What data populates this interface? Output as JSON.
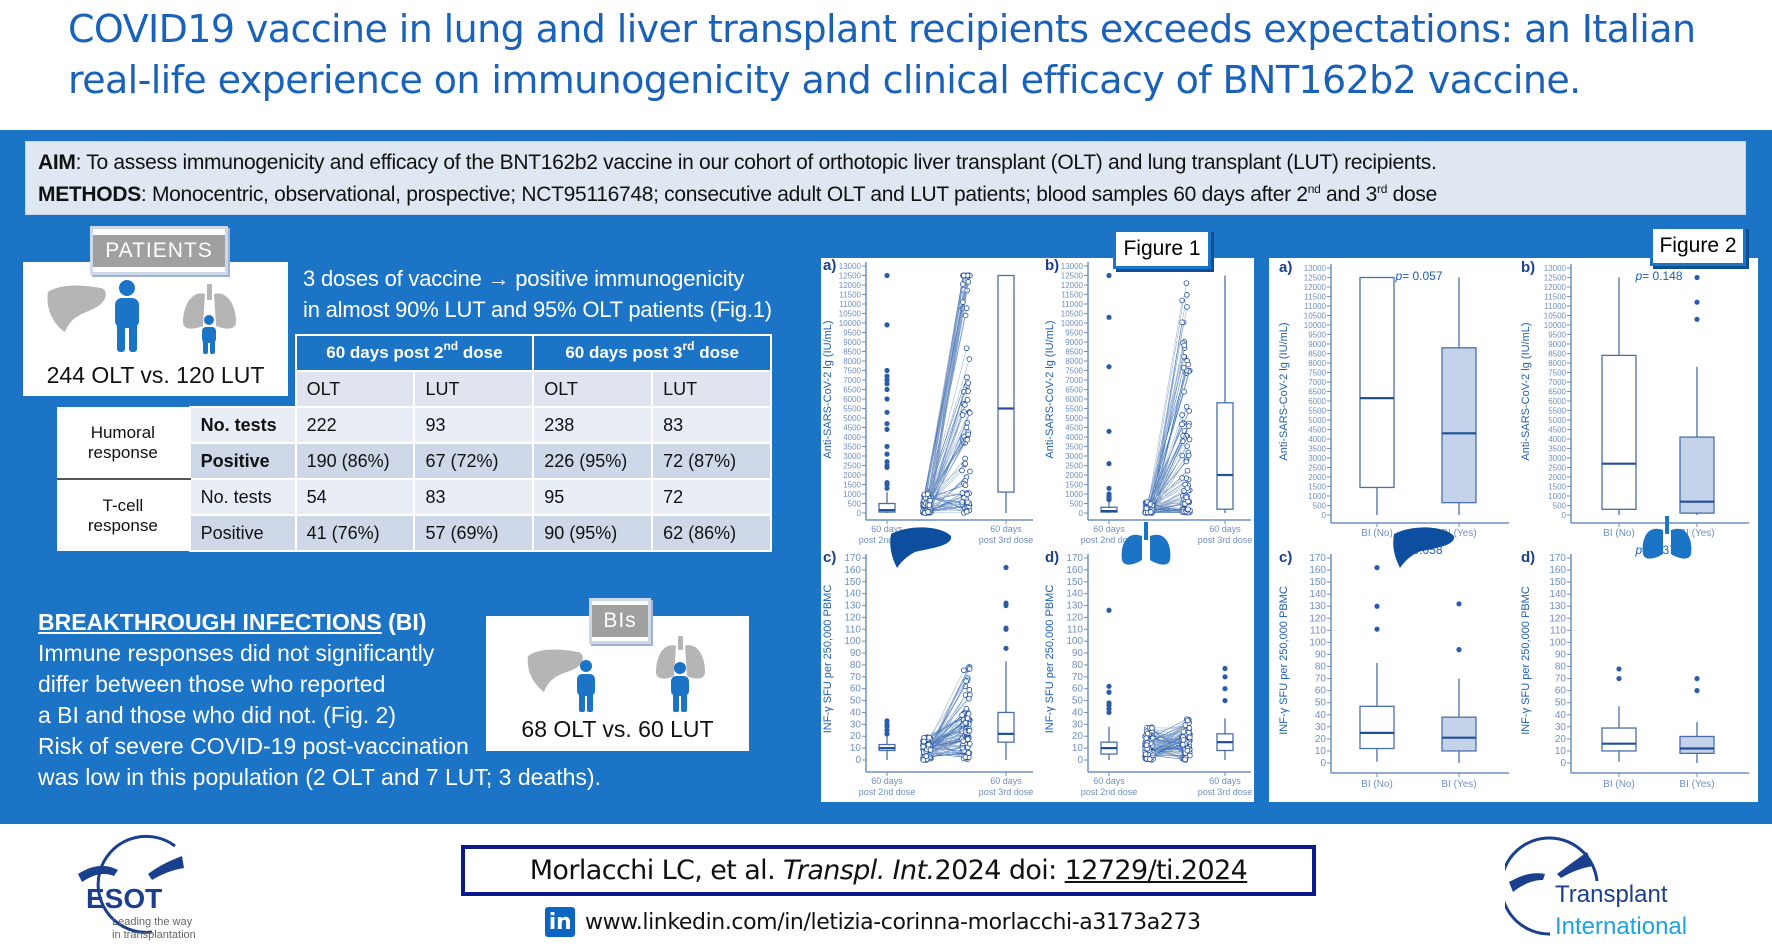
{
  "title": {
    "line1": "COVID19 vaccine in lung and liver transplant recipients exceeds expectations: an Italian",
    "line2": "real-life experience on immunogenicity and clinical efficacy of BNT162b2 vaccine."
  },
  "aim": {
    "label": "AIM",
    "text": ": To assess immunogenicity and efficacy of the BNT162b2 vaccine in our cohort of orthotopic liver transplant (OLT) and lung transplant (LUT) recipients."
  },
  "methods": {
    "label": "METHODS",
    "text": ": Monocentric, observational, prospective; NCT95116748; consecutive adult OLT and LUT patients; blood samples 60 days after 2",
    "sup1": "nd",
    "mid": " and 3",
    "sup2": "rd",
    "end": " dose"
  },
  "patients": {
    "tab": "PATIENTS",
    "count": "244 OLT  vs. 120 LUT"
  },
  "summary": {
    "line1": "3 doses of vaccine → positive immunogenicity",
    "line2": "in almost 90% LUT and 95% OLT patients (Fig.1)"
  },
  "table": {
    "header1": [
      {
        "pre": "60 days post 2",
        "sup": "nd",
        "post": " dose"
      },
      {
        "pre": "60 days post 3",
        "sup": "rd",
        "post": " dose"
      }
    ],
    "header2": [
      "OLT",
      "LUT",
      "OLT",
      "LUT"
    ],
    "groups": [
      {
        "label": "Humoral response",
        "rows": [
          {
            "label": "No. tests",
            "values": [
              "222",
              "93",
              "238",
              "83"
            ]
          },
          {
            "label": "Positive",
            "values": [
              "190 (86%)",
              "67 (72%)",
              "226 (95%)",
              "72 (87%)"
            ]
          }
        ]
      },
      {
        "label": "T-cell response",
        "rows": [
          {
            "label": "No. tests",
            "values": [
              "54",
              "83",
              "95",
              "72"
            ]
          },
          {
            "label": "Positive",
            "values": [
              "41 (76%)",
              "57 (69%)",
              "90 (95%)",
              "62 (86%)"
            ]
          }
        ]
      }
    ]
  },
  "breakthrough": {
    "heading": "BREAKTHROUGH INFECTIONS",
    "heading_suffix": " (BI)",
    "lines": [
      "Immune responses did not significantly",
      "differ between those who reported",
      "a BI and those who did not. (Fig. 2)",
      "Risk of severe COVID-19 post-vaccination",
      "was low in this population (2 OLT and 7 LUT; 3 deaths)."
    ]
  },
  "bis": {
    "tab": "BIs",
    "count": "68 OLT  vs. 60 LUT"
  },
  "figure1": {
    "label": "Figure 1"
  },
  "figure2": {
    "label": "Figure 2"
  },
  "citation": {
    "authors": "Morlacchi LC, et al. ",
    "journal": "Transpl. Int.",
    "year": " 2024 doi: ",
    "doi": "12729/ti.2024"
  },
  "linkedin": {
    "icon": "in",
    "url": "www.linkedin.com/in/letizia-corinna-morlacchi-a3173a273"
  },
  "logos": {
    "esot": {
      "name": "ESOT",
      "tagline1": "Leading the way",
      "tagline2": "in transplantation"
    },
    "ti": {
      "line1": "Transplant",
      "line2": "International"
    }
  },
  "colors": {
    "panel_blue": "#1b74c6",
    "title_blue": "#1a62b8",
    "chart_navy": "#1f4e9c",
    "chart_tick": "#6f8fc0",
    "bi_yes_fill": "#c5d3ea",
    "organ_gray": "#b5b5b5"
  },
  "chart_data": [
    {
      "figure": "Figure 1",
      "panel": "a)",
      "type": "box+paired",
      "organ": "liver",
      "ylabel": "Anti-SARS-CoV-2 lg (IU/mL)",
      "ylim": [
        0,
        13000
      ],
      "ytick_step": 500,
      "categories": [
        [
          "60 days",
          "post 2nd dose"
        ],
        [
          "60 days",
          "post 3rd dose"
        ]
      ],
      "boxes": [
        {
          "whisker_low": 0,
          "q1": 50,
          "median": 150,
          "q3": 500,
          "whisker_high": 1100,
          "outliers": [
            1300,
            1500,
            1600,
            2400,
            2500,
            2700,
            3100,
            3500,
            4400,
            4700,
            5300,
            6000,
            6500,
            6800,
            7000,
            7200,
            7500,
            9900,
            12500
          ]
        },
        {
          "whisker_low": 0,
          "q1": 1100,
          "median": 5500,
          "q3": 12500,
          "whisker_high": 12500,
          "outliers": []
        }
      ]
    },
    {
      "figure": "Figure 1",
      "panel": "b)",
      "type": "box+paired",
      "organ": "lungs",
      "ylabel": "Anti-SARS-CoV-2 lg (IU/mL)",
      "ylim": [
        0,
        13000
      ],
      "ytick_step": 500,
      "categories": [
        [
          "60 days",
          "post 2nd dose"
        ],
        [
          "60 days",
          "post 3rd dose"
        ]
      ],
      "boxes": [
        {
          "whisker_low": 0,
          "q1": 50,
          "median": 100,
          "q3": 300,
          "whisker_high": 600,
          "outliers": [
            700,
            800,
            900,
            1000,
            1300,
            2600,
            4300,
            7700,
            10300,
            12500
          ]
        },
        {
          "whisker_low": 0,
          "q1": 200,
          "median": 2000,
          "q3": 5800,
          "whisker_high": 12500,
          "outliers": []
        }
      ]
    },
    {
      "figure": "Figure 1",
      "panel": "c)",
      "type": "box+paired",
      "organ": "liver",
      "ylabel": "INF-γ SFU per 250,000 PBMC",
      "ylim": [
        0,
        170
      ],
      "ytick_step": 10,
      "categories": [
        [
          "60 days",
          "post 2nd dose"
        ],
        [
          "60 days",
          "post 3rd dose"
        ]
      ],
      "boxes": [
        {
          "whisker_low": 0,
          "q1": 8,
          "median": 10,
          "q3": 13,
          "whisker_high": 20,
          "outliers": [
            22,
            25,
            28,
            30,
            33
          ]
        },
        {
          "whisker_low": 0,
          "q1": 15,
          "median": 22,
          "q3": 40,
          "whisker_high": 83,
          "outliers": [
            94,
            110,
            111,
            130,
            132,
            162
          ]
        }
      ]
    },
    {
      "figure": "Figure 1",
      "panel": "d)",
      "type": "box+paired",
      "organ": "lungs",
      "ylabel": "INF-γ SFU per 250,000 PBMC",
      "ylim": [
        0,
        170
      ],
      "ytick_step": 10,
      "categories": [
        [
          "60 days",
          "post 2nd dose"
        ],
        [
          "60 days",
          "post 3rd dose"
        ]
      ],
      "boxes": [
        {
          "whisker_low": 0,
          "q1": 5,
          "median": 10,
          "q3": 15,
          "whisker_high": 28,
          "outliers": [
            40,
            43,
            46,
            48,
            57,
            62,
            126
          ]
        },
        {
          "whisker_low": 0,
          "q1": 8,
          "median": 15,
          "q3": 22,
          "whisker_high": 35,
          "outliers": [
            50,
            60,
            70,
            77
          ]
        }
      ]
    },
    {
      "figure": "Figure 2",
      "panel": "a)",
      "type": "box",
      "organ": "liver",
      "p_label": "p =",
      "p_value": "0.057",
      "ylabel": "Anti-SARS-CoV-2 lg (IU/mL)",
      "ylim": [
        0,
        13000
      ],
      "ytick_step": 500,
      "categories": [
        [
          "BI (No)"
        ],
        [
          "BI (Yes)"
        ]
      ],
      "boxes": [
        {
          "whisker_low": 0,
          "q1": 1450,
          "median": 6150,
          "q3": 12500,
          "whisker_high": 12500,
          "outliers": []
        },
        {
          "whisker_low": 0,
          "q1": 650,
          "median": 4300,
          "q3": 8800,
          "whisker_high": 12500,
          "outliers": []
        }
      ]
    },
    {
      "figure": "Figure 2",
      "panel": "b)",
      "type": "box",
      "organ": "lungs",
      "p_label": "p =",
      "p_value": "0.148",
      "ylabel": "Anti-SARS-CoV-2 lg (IU/mL)",
      "ylim": [
        0,
        13000
      ],
      "ytick_step": 500,
      "categories": [
        [
          "BI (No)"
        ],
        [
          "BI (Yes)"
        ]
      ],
      "boxes": [
        {
          "whisker_low": 0,
          "q1": 300,
          "median": 2700,
          "q3": 8400,
          "whisker_high": 12500,
          "outliers": []
        },
        {
          "whisker_low": 0,
          "q1": 100,
          "median": 700,
          "q3": 4100,
          "whisker_high": 7800,
          "outliers": [
            10300,
            11200,
            12500
          ]
        }
      ]
    },
    {
      "figure": "Figure 2",
      "panel": "c)",
      "type": "box",
      "organ": "liver",
      "p_label": "p =",
      "p_value": "0.058",
      "ylabel": "INF-γ SFU per 250,000 PBMC",
      "ylim": [
        0,
        170
      ],
      "ytick_step": 10,
      "categories": [
        [
          "BI (No)"
        ],
        [
          "BI (Yes)"
        ]
      ],
      "boxes": [
        {
          "whisker_low": 1,
          "q1": 12,
          "median": 25,
          "q3": 47,
          "whisker_high": 83,
          "outliers": [
            111,
            130,
            162
          ]
        },
        {
          "whisker_low": 0,
          "q1": 10,
          "median": 21,
          "q3": 38,
          "whisker_high": 70,
          "outliers": [
            94,
            132
          ]
        }
      ]
    },
    {
      "figure": "Figure 2",
      "panel": "d)",
      "type": "box",
      "organ": "lungs",
      "p_label": "p =",
      "p_value": "0.377",
      "ylabel": "INF-γ SFU per 250,000 PBMC",
      "ylim": [
        0,
        170
      ],
      "ytick_step": 10,
      "categories": [
        [
          "BI (No)"
        ],
        [
          "BI (Yes)"
        ]
      ],
      "boxes": [
        {
          "whisker_low": 1,
          "q1": 10,
          "median": 16,
          "q3": 29,
          "whisker_high": 47,
          "outliers": [
            70,
            78
          ]
        },
        {
          "whisker_low": 0,
          "q1": 8,
          "median": 12,
          "q3": 22,
          "whisker_high": 34,
          "outliers": [
            60,
            70
          ]
        }
      ]
    }
  ]
}
